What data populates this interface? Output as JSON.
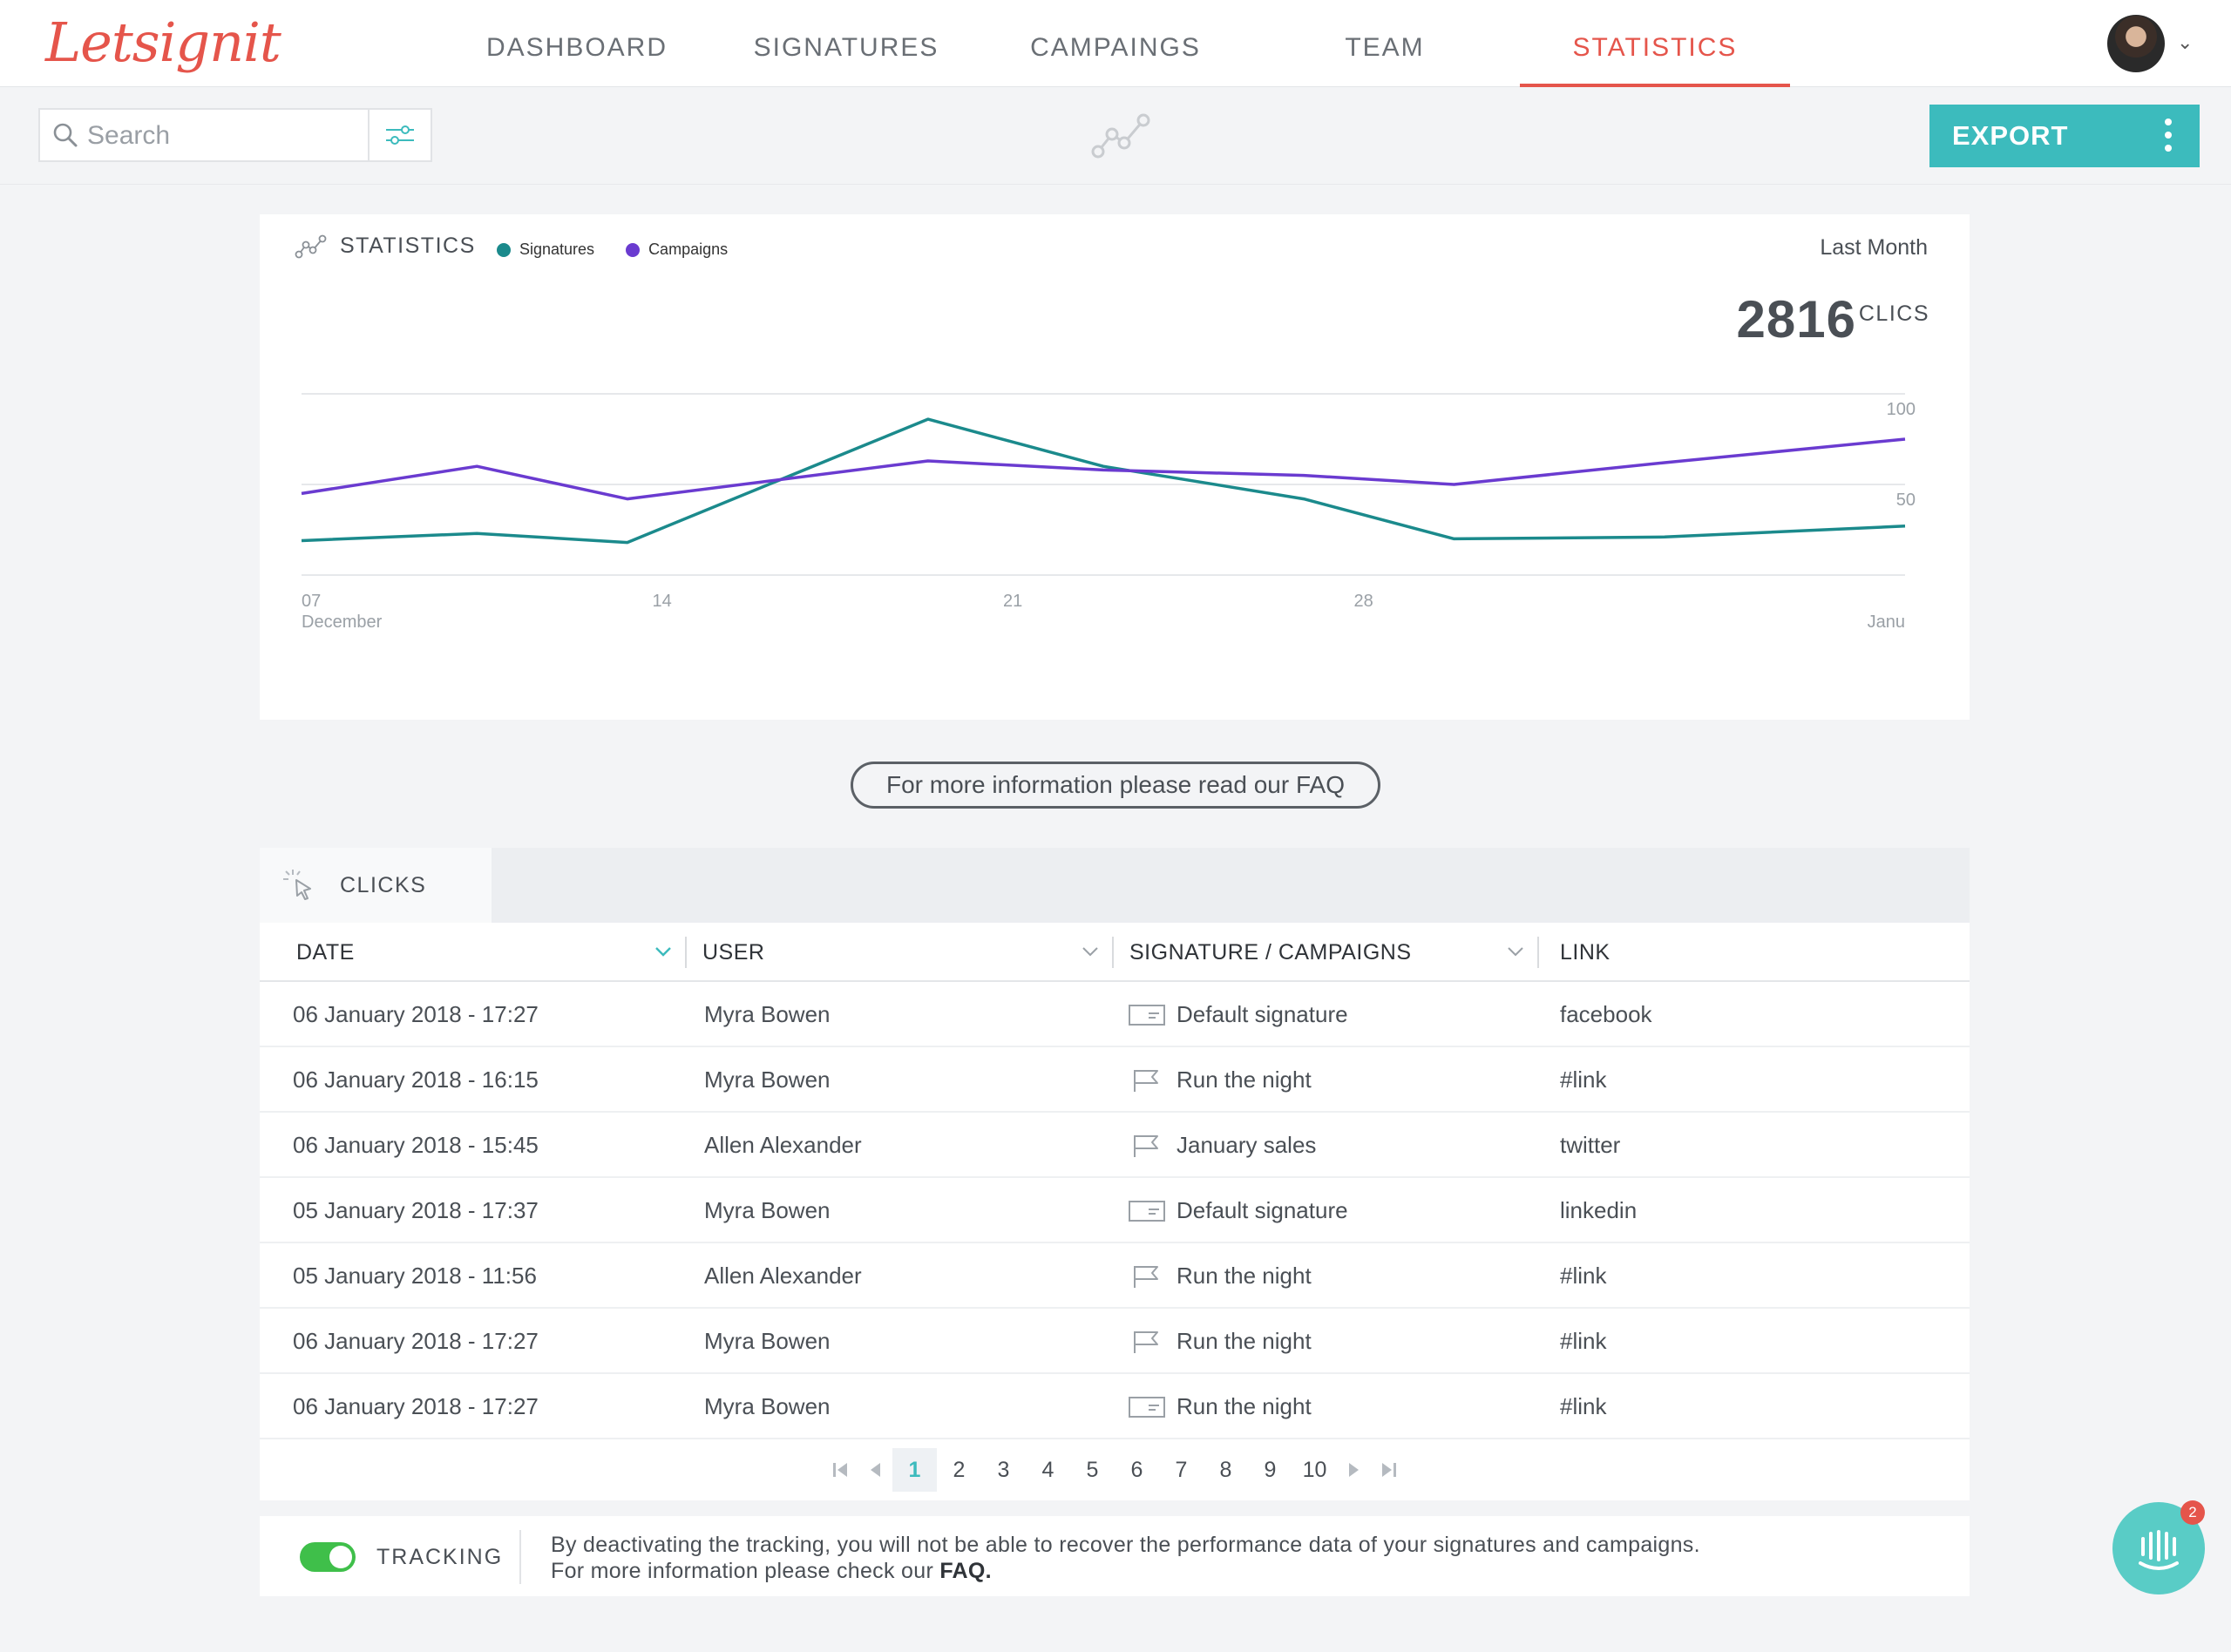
{
  "app": {
    "logo_text": "Letsignit"
  },
  "nav": {
    "items": [
      {
        "label": "DASHBOARD"
      },
      {
        "label": "SIGNATURES"
      },
      {
        "label": "CAMPAINGS"
      },
      {
        "label": "TEAM"
      },
      {
        "label": "STATISTICS"
      }
    ],
    "active_index": 4
  },
  "toolbar": {
    "search_placeholder": "Search",
    "export_label": "EXPORT"
  },
  "stats": {
    "title": "STATISTICS",
    "legend": [
      {
        "name": "Signatures",
        "color": "#1b8a8c"
      },
      {
        "name": "Campaigns",
        "color": "#6a3bd0"
      }
    ],
    "period": "Last Month",
    "total": "2816",
    "total_unit": "CLICS"
  },
  "chart_data": {
    "type": "line",
    "title": "",
    "y_ticks": [
      "100",
      "50"
    ],
    "ylim": [
      0,
      100
    ],
    "x_ticks": [
      {
        "label": "07",
        "sublabel": "December"
      },
      {
        "label": "14",
        "sublabel": ""
      },
      {
        "label": "21",
        "sublabel": ""
      },
      {
        "label": "28",
        "sublabel": ""
      },
      {
        "label": "Janu",
        "sublabel": ""
      }
    ],
    "x_values": [
      0,
      3,
      6,
      12.5,
      16.5,
      21,
      25,
      29,
      32
    ],
    "series": [
      {
        "name": "Signatures",
        "color": "#1b8a8c",
        "x": [
          0,
          3.5,
          6.5,
          12.5,
          16,
          20,
          23,
          27.2,
          32
        ],
        "values": [
          19,
          23,
          18,
          86,
          60,
          42,
          20,
          21,
          27
        ]
      },
      {
        "name": "Campaigns",
        "color": "#6a3bd0",
        "x": [
          0,
          3.5,
          6.5,
          12.5,
          16,
          20,
          23,
          27.2,
          32
        ],
        "values": [
          45,
          60,
          42,
          63,
          58,
          55,
          50,
          62,
          75
        ]
      }
    ]
  },
  "faq": {
    "label": "For more information please read our FAQ"
  },
  "clicks": {
    "tab_label": "CLICKS",
    "columns": [
      "DATE",
      "USER",
      "SIGNATURE / CAMPAIGNS",
      "LINK"
    ],
    "rows": [
      {
        "date": "06 January 2018 - 17:27",
        "user": "Myra Bowen",
        "type": "signature",
        "item": "Default signature",
        "link": "facebook"
      },
      {
        "date": "06 January 2018 - 16:15",
        "user": "Myra Bowen",
        "type": "campaign",
        "item": "Run the night",
        "link": "#link"
      },
      {
        "date": "06 January 2018 - 15:45",
        "user": "Allen Alexander",
        "type": "campaign",
        "item": "January sales",
        "link": "twitter"
      },
      {
        "date": "05 January 2018 - 17:37",
        "user": "Myra Bowen",
        "type": "signature",
        "item": "Default signature",
        "link": "linkedin"
      },
      {
        "date": "05 January 2018 - 11:56",
        "user": "Allen Alexander",
        "type": "campaign",
        "item": "Run the night",
        "link": "#link"
      },
      {
        "date": "06 January 2018 - 17:27",
        "user": "Myra Bowen",
        "type": "campaign",
        "item": "Run the night",
        "link": "#link"
      },
      {
        "date": "06 January 2018 - 17:27",
        "user": "Myra Bowen",
        "type": "signature",
        "item": "Run the night",
        "link": "#link"
      }
    ],
    "pages": [
      "1",
      "2",
      "3",
      "4",
      "5",
      "6",
      "7",
      "8",
      "9",
      "10"
    ],
    "current_page": "1"
  },
  "tracking": {
    "label": "TRACKING",
    "enabled": true,
    "text_line1": "By deactivating the tracking, you will not be able to recover the performance data of your signatures and campaigns.",
    "text_line2_prefix": "For more information please check our ",
    "text_line2_link": "FAQ."
  },
  "chat": {
    "badge_count": "2"
  }
}
